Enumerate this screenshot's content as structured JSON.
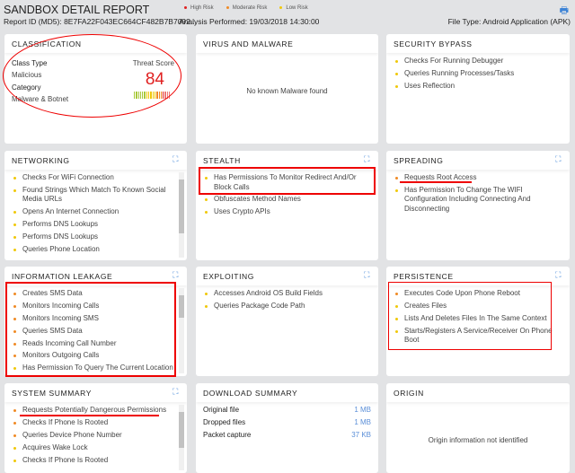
{
  "header": {
    "title": "SANDBOX DETAIL REPORT",
    "report_id": "Report ID (MD5): 8E7FA22F043EC664CF482B7B7092...",
    "analysis": "Analysis Performed: 19/03/2018 14:30:00",
    "file_type": "File Type: Android Application (APK)",
    "print_icon": "printer-icon",
    "legend": [
      {
        "label": "High Risk",
        "color": "#e02020"
      },
      {
        "label": "Moderate Risk",
        "color": "#f08a24"
      },
      {
        "label": "Low Risk",
        "color": "#f0c808"
      }
    ]
  },
  "classification": {
    "title": "CLASSIFICATION",
    "class_type_label": "Class Type",
    "class_type": "Malicious",
    "category_label": "Category",
    "category": "Malware & Botnet",
    "threat_score_label": "Threat Score",
    "threat_score": "84",
    "threat_score_pct": 84
  },
  "virus": {
    "title": "VIRUS AND MALWARE",
    "message": "No known Malware found"
  },
  "security_bypass": {
    "title": "SECURITY BYPASS",
    "items": [
      {
        "text": "Checks For Running Debugger",
        "risk": "low"
      },
      {
        "text": "Queries Running Processes/Tasks",
        "risk": "low"
      },
      {
        "text": "Uses Reflection",
        "risk": "low"
      }
    ]
  },
  "networking": {
    "title": "NETWORKING",
    "items": [
      {
        "text": "Checks For WiFi Connection",
        "risk": "low"
      },
      {
        "text": "Found Strings Which Match To Known Social Media URLs",
        "risk": "low"
      },
      {
        "text": "Opens An Internet Connection",
        "risk": "low"
      },
      {
        "text": "Performs DNS Lookups",
        "risk": "low"
      },
      {
        "text": "Performs DNS Lookups",
        "risk": "low"
      },
      {
        "text": "Queries Phone Location",
        "risk": "low"
      }
    ]
  },
  "stealth": {
    "title": "STEALTH",
    "items": [
      {
        "text": "Has Permissions To Monitor Redirect And/Or Block Calls",
        "risk": "low"
      },
      {
        "text": "Obfuscates Method Names",
        "risk": "low"
      },
      {
        "text": "Uses Crypto APIs",
        "risk": "low"
      }
    ]
  },
  "spreading": {
    "title": "SPREADING",
    "items": [
      {
        "text": "Requests Root Access",
        "risk": "moderate"
      },
      {
        "text": "Has Permission To Change The WIFI Configuration Including Connecting And Disconnecting",
        "risk": "low"
      }
    ]
  },
  "information_leakage": {
    "title": "INFORMATION LEAKAGE",
    "items": [
      {
        "text": "Creates SMS Data",
        "risk": "moderate"
      },
      {
        "text": "Monitors Incoming Calls",
        "risk": "moderate"
      },
      {
        "text": "Monitors Incoming SMS",
        "risk": "moderate"
      },
      {
        "text": "Queries SMS Data",
        "risk": "moderate"
      },
      {
        "text": "Reads Incoming Call Number",
        "risk": "moderate"
      },
      {
        "text": "Monitors Outgoing Calls",
        "risk": "moderate"
      },
      {
        "text": "Has Permission To Query The Current Location",
        "risk": "low"
      }
    ]
  },
  "exploiting": {
    "title": "EXPLOITING",
    "items": [
      {
        "text": "Accesses Android OS Build Fields",
        "risk": "low"
      },
      {
        "text": "Queries Package Code Path",
        "risk": "low"
      }
    ]
  },
  "persistence": {
    "title": "PERSISTENCE",
    "items": [
      {
        "text": "Executes Code Upon Phone Reboot",
        "risk": "moderate"
      },
      {
        "text": "Creates Files",
        "risk": "low"
      },
      {
        "text": "Lists And Deletes Files In The Same Context",
        "risk": "low"
      },
      {
        "text": "Starts/Registers A Service/Receiver On Phone Boot",
        "risk": "low"
      }
    ]
  },
  "system_summary": {
    "title": "SYSTEM SUMMARY",
    "items": [
      {
        "text": "Requests Potentially Dangerous Permissions",
        "risk": "moderate"
      },
      {
        "text": "Checks If Phone Is Rooted",
        "risk": "moderate"
      },
      {
        "text": "Queries Device Phone Number",
        "risk": "moderate"
      },
      {
        "text": "Acquires Wake Lock",
        "risk": "low"
      },
      {
        "text": "Checks If Phone Is Rooted",
        "risk": "low"
      }
    ]
  },
  "download_summary": {
    "title": "DOWNLOAD SUMMARY",
    "rows": [
      {
        "label": "Original file",
        "value": "1 MB"
      },
      {
        "label": "Dropped files",
        "value": "1 MB"
      },
      {
        "label": "Packet capture",
        "value": "37 KB"
      }
    ]
  },
  "origin": {
    "title": "ORIGIN",
    "message": "Origin information not identified"
  }
}
